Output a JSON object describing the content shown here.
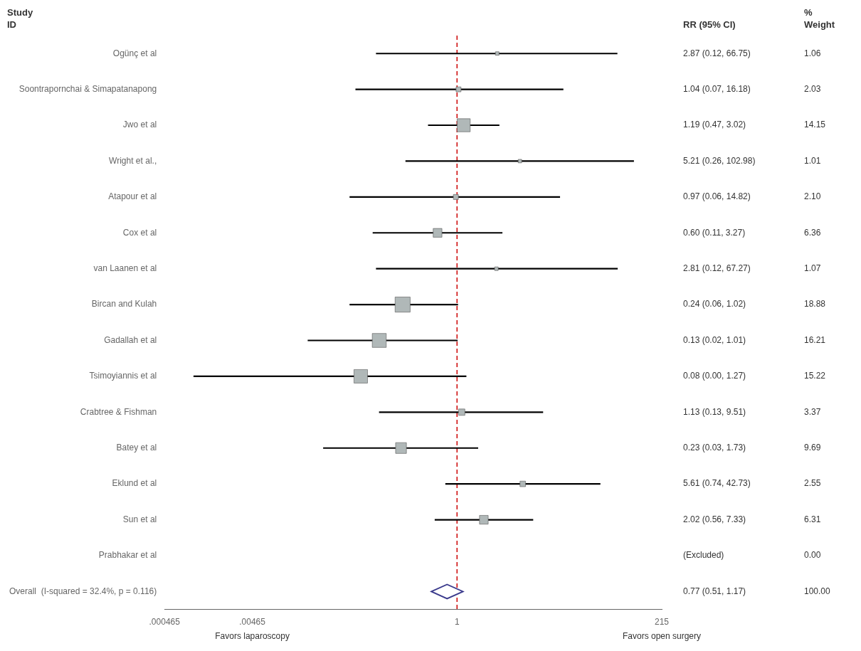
{
  "chart_data": {
    "type": "forest",
    "categories": [
      "Ogünç et al",
      "Soontrapornchai & Simapatanapong",
      "Jwo et al",
      "Wright et al.,",
      "Atapour et al",
      "Cox et al",
      "van Laanen et al",
      "Bircan and Kulah",
      "Gadallah et al",
      "Tsimoyiannis et al",
      "Crabtree & Fishman",
      "Batey et al",
      "Eklund et al",
      "Sun et al",
      "Prabhakar et al",
      "Overall  (I-squared = 32.4%, p = 0.116)"
    ],
    "values": [
      2.87,
      1.04,
      1.19,
      5.21,
      0.97,
      0.6,
      2.81,
      0.24,
      0.13,
      0.08,
      1.13,
      0.23,
      5.61,
      2.02,
      null,
      0.77
    ],
    "ci_lo": [
      0.12,
      0.07,
      0.47,
      0.26,
      0.06,
      0.11,
      0.12,
      0.06,
      0.02,
      0.001,
      0.13,
      0.03,
      0.74,
      0.56,
      null,
      0.51
    ],
    "ci_hi": [
      66.75,
      16.18,
      3.02,
      102.98,
      14.82,
      3.27,
      67.27,
      1.02,
      1.01,
      1.27,
      9.51,
      1.73,
      42.73,
      7.33,
      null,
      1.17
    ],
    "weights": [
      1.06,
      2.03,
      14.15,
      1.01,
      2.1,
      6.36,
      1.07,
      18.88,
      16.21,
      15.22,
      3.37,
      9.69,
      2.55,
      6.31,
      0.0,
      100.0
    ],
    "value_labels": [
      "2.87 (0.12, 66.75)",
      "1.04 (0.07, 16.18)",
      "1.19 (0.47, 3.02)",
      "5.21 (0.26, 102.98)",
      "0.97 (0.06, 14.82)",
      "0.60 (0.11, 3.27)",
      "2.81 (0.12, 67.27)",
      "0.24 (0.06, 1.02)",
      "0.13 (0.02, 1.01)",
      "0.08 (0.00, 1.27)",
      "1.13 (0.13, 9.51)",
      "0.23 (0.03, 1.73)",
      "5.61 (0.74, 42.73)",
      "2.02 (0.56, 7.33)",
      "(Excluded)",
      "0.77 (0.51, 1.17)"
    ],
    "weight_labels": [
      "1.06",
      "2.03",
      "14.15",
      "1.01",
      "2.10",
      "6.36",
      "1.07",
      "18.88",
      "16.21",
      "15.22",
      "3.37",
      "9.69",
      "2.55",
      "6.31",
      "0.00",
      "100.00"
    ],
    "markers": [
      "square",
      "square",
      "square",
      "square",
      "square",
      "square",
      "square",
      "square",
      "square",
      "square",
      "square",
      "square",
      "square",
      "square",
      "square",
      "diamond"
    ],
    "color": "#b0b8b8",
    "diamond_color": "#3a3a8c",
    "reference_line": 1,
    "reference_color": "#cc0000",
    "log": "x",
    "xlim": [
      0.000465,
      215
    ],
    "xticks": [
      {
        "value": 0.000465,
        "label": ".000465"
      },
      {
        "value": 0.00465,
        "label": ".00465"
      },
      1,
      215
    ],
    "column_headers": [
      [
        "Study",
        "ID"
      ],
      [
        "RR (95% CI)"
      ],
      [
        "%",
        "Weight"
      ]
    ],
    "annotations": [
      {
        "text": "Favors laparoscopy",
        "x": 0.00465
      },
      {
        "text": "Favors open surgery",
        "x": 215
      }
    ],
    "grid": false,
    "legend": false
  }
}
